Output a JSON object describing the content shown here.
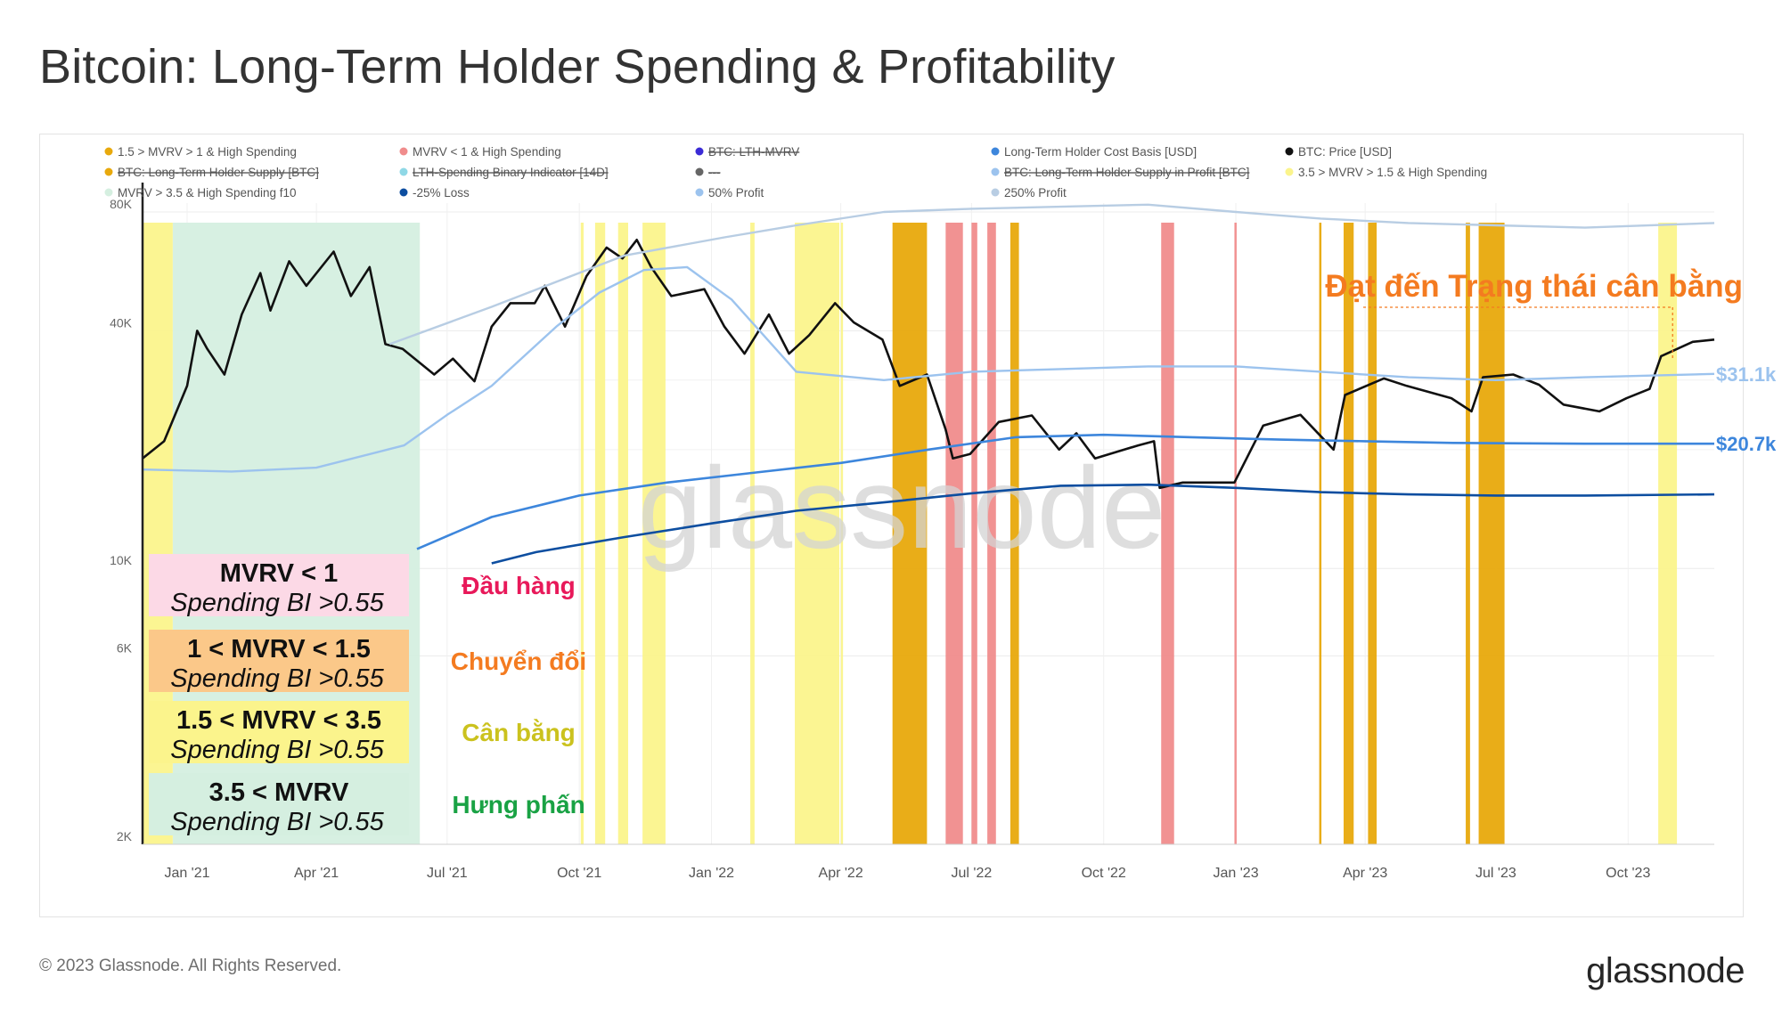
{
  "title": "Bitcoin: Long-Term Holder Spending & Profitability",
  "footer": {
    "copyright": "© 2023 Glassnode. All Rights Reserved.",
    "brand": "glassnode"
  },
  "watermark": "glassnode",
  "colors": {
    "price": "#111111",
    "cost_basis": "#3d86dc",
    "loss25": "#0d4ea0",
    "profit50": "#9cc3ee",
    "profit250": "#b8cde3",
    "balanced": "#fbf48c",
    "transition": "#e8a90c",
    "capitulation": "#f08c8c",
    "euphoria": "#d5efe0",
    "annotation": "#f47b20"
  },
  "legend": [
    {
      "label": "1.5 > MVRV > 1 & High Spending",
      "color": "#e8a90c",
      "struck": false
    },
    {
      "label": "MVRV < 1 & High Spending",
      "color": "#f08c8c",
      "struck": false
    },
    {
      "label": "BTC: LTH-MVRV",
      "color": "#3b2bd6",
      "struck": true
    },
    {
      "label": "Long-Term Holder Cost Basis [USD]",
      "color": "#3d86dc",
      "struck": false
    },
    {
      "label": "BTC: Price [USD]",
      "color": "#111111",
      "struck": false
    },
    {
      "label": "BTC: Long-Term Holder Supply [BTC]",
      "color": "#e8a90c",
      "struck": true
    },
    {
      "label": "LTH-Spending Binary Indicator [14D]",
      "color": "#8fd8e6",
      "struck": true
    },
    {
      "label": "---",
      "color": "#666666",
      "struck": true
    },
    {
      "label": "BTC: Long-Term Holder Supply in Profit [BTC]",
      "color": "#9cc3ee",
      "struck": true
    },
    {
      "label": "3.5 > MVRV > 1.5 & High Spending",
      "color": "#fbf48c",
      "struck": false
    },
    {
      "label": "MVRV > 3.5 & High Spending f10",
      "color": "#d5efe0",
      "struck": false
    },
    {
      "label": "-25% Loss",
      "color": "#0d4ea0",
      "struck": false
    },
    {
      "label": "50% Profit",
      "color": "#9cc3ee",
      "struck": false
    },
    {
      "label": "250% Profit",
      "color": "#b8cde3",
      "struck": false
    }
  ],
  "overlay_boxes": [
    {
      "line1": "MVRV < 1",
      "line2": "Spending BI >0.55",
      "label": "Đầu hàng",
      "bg": "#fcd9e6",
      "label_color": "#e8195a"
    },
    {
      "line1": "1 < MVRV < 1.5",
      "line2": "Spending BI >0.55",
      "label": "Chuyển đổi",
      "bg": "#fbc889",
      "label_color": "#f47b20"
    },
    {
      "line1": "1.5 < MVRV < 3.5",
      "line2": "Spending BI >0.55",
      "label": "Cân bằng",
      "bg": "#fbf48c",
      "label_color": "#cbc21e"
    },
    {
      "line1": "3.5 < MVRV",
      "line2": "Spending BI >0.55",
      "label": "Hưng phấn",
      "bg": "#d5efe0",
      "label_color": "#19a244"
    }
  ],
  "annotation": {
    "text": "Đạt đến Trạng thái cân bằng",
    "date": "2023-11-01"
  },
  "right_labels": [
    {
      "text": "$31.1k",
      "value": 31100,
      "color": "#9cc3ee"
    },
    {
      "text": "$20.7k",
      "value": 20700,
      "color": "#3d86dc"
    }
  ],
  "chart_data": {
    "type": "line",
    "title": "Bitcoin: Long-Term Holder Spending & Profitability",
    "y_scale": "log",
    "ylim": [
      2000,
      80000
    ],
    "xlim": [
      "2020-12-01",
      "2023-11-30"
    ],
    "y_ticks": [
      {
        "v": 2000,
        "label": "2K"
      },
      {
        "v": 6000,
        "label": "6K"
      },
      {
        "v": 10000,
        "label": "10K"
      },
      {
        "v": 40000,
        "label": "40K"
      },
      {
        "v": 80000,
        "label": "80K"
      }
    ],
    "x_ticks": [
      {
        "date": "2021-01-01",
        "label": "Jan '21"
      },
      {
        "date": "2021-04-01",
        "label": "Apr '21"
      },
      {
        "date": "2021-07-01",
        "label": "Jul '21"
      },
      {
        "date": "2021-10-01",
        "label": "Oct '21"
      },
      {
        "date": "2022-01-01",
        "label": "Jan '22"
      },
      {
        "date": "2022-04-01",
        "label": "Apr '22"
      },
      {
        "date": "2022-07-01",
        "label": "Jul '22"
      },
      {
        "date": "2022-10-01",
        "label": "Oct '22"
      },
      {
        "date": "2023-01-01",
        "label": "Jan '23"
      },
      {
        "date": "2023-04-01",
        "label": "Apr '23"
      },
      {
        "date": "2023-07-01",
        "label": "Jul '23"
      },
      {
        "date": "2023-10-01",
        "label": "Oct '23"
      }
    ],
    "series": [
      {
        "name": "BTC: Price [USD]",
        "color": "#111111",
        "width": 2.6,
        "points": [
          [
            "2020-12-01",
            19000
          ],
          [
            "2020-12-16",
            21000
          ],
          [
            "2021-01-01",
            29000
          ],
          [
            "2021-01-08",
            40000
          ],
          [
            "2021-01-15",
            36000
          ],
          [
            "2021-01-27",
            31000
          ],
          [
            "2021-02-08",
            44000
          ],
          [
            "2021-02-21",
            56000
          ],
          [
            "2021-02-28",
            45000
          ],
          [
            "2021-03-13",
            60000
          ],
          [
            "2021-03-25",
            52000
          ],
          [
            "2021-04-13",
            63500
          ],
          [
            "2021-04-25",
            49000
          ],
          [
            "2021-05-08",
            58000
          ],
          [
            "2021-05-19",
            37000
          ],
          [
            "2021-05-31",
            36000
          ],
          [
            "2021-06-22",
            31000
          ],
          [
            "2021-07-05",
            34000
          ],
          [
            "2021-07-20",
            29800
          ],
          [
            "2021-08-01",
            41000
          ],
          [
            "2021-08-14",
            47000
          ],
          [
            "2021-08-31",
            47000
          ],
          [
            "2021-09-07",
            52000
          ],
          [
            "2021-09-21",
            41000
          ],
          [
            "2021-10-06",
            55000
          ],
          [
            "2021-10-20",
            65000
          ],
          [
            "2021-10-31",
            61000
          ],
          [
            "2021-11-10",
            68000
          ],
          [
            "2021-11-20",
            58000
          ],
          [
            "2021-12-04",
            49000
          ],
          [
            "2021-12-27",
            51000
          ],
          [
            "2022-01-10",
            41000
          ],
          [
            "2022-01-24",
            35000
          ],
          [
            "2022-02-10",
            44000
          ],
          [
            "2022-02-24",
            35000
          ],
          [
            "2022-03-10",
            39000
          ],
          [
            "2022-03-28",
            47000
          ],
          [
            "2022-04-10",
            42000
          ],
          [
            "2022-04-30",
            38000
          ],
          [
            "2022-05-12",
            29000
          ],
          [
            "2022-05-31",
            31000
          ],
          [
            "2022-06-13",
            22500
          ],
          [
            "2022-06-18",
            19000
          ],
          [
            "2022-06-30",
            19500
          ],
          [
            "2022-07-20",
            23500
          ],
          [
            "2022-08-12",
            24400
          ],
          [
            "2022-08-31",
            20000
          ],
          [
            "2022-09-12",
            22000
          ],
          [
            "2022-09-25",
            19000
          ],
          [
            "2022-10-25",
            20500
          ],
          [
            "2022-11-05",
            21000
          ],
          [
            "2022-11-09",
            16000
          ],
          [
            "2022-11-25",
            16500
          ],
          [
            "2022-12-31",
            16500
          ],
          [
            "2023-01-20",
            23000
          ],
          [
            "2023-02-15",
            24500
          ],
          [
            "2023-03-10",
            20000
          ],
          [
            "2023-03-18",
            27500
          ],
          [
            "2023-04-14",
            30300
          ],
          [
            "2023-04-30",
            29000
          ],
          [
            "2023-05-31",
            27000
          ],
          [
            "2023-06-14",
            25000
          ],
          [
            "2023-06-22",
            30500
          ],
          [
            "2023-07-13",
            31000
          ],
          [
            "2023-07-31",
            29200
          ],
          [
            "2023-08-17",
            26000
          ],
          [
            "2023-09-11",
            25000
          ],
          [
            "2023-09-30",
            27000
          ],
          [
            "2023-10-16",
            28500
          ],
          [
            "2023-10-24",
            34500
          ],
          [
            "2023-11-15",
            37500
          ],
          [
            "2023-11-30",
            38000
          ]
        ]
      },
      {
        "name": "250% Profit",
        "color": "#b8cde3",
        "width": 2.4,
        "points": [
          [
            "2021-05-22",
            37000
          ],
          [
            "2021-08-01",
            46000
          ],
          [
            "2021-11-01",
            62000
          ],
          [
            "2022-01-10",
            69000
          ],
          [
            "2022-03-01",
            74000
          ],
          [
            "2022-05-01",
            80000
          ],
          [
            "2022-07-01",
            81500
          ],
          [
            "2022-09-01",
            82500
          ],
          [
            "2022-11-01",
            83500
          ],
          [
            "2023-01-01",
            80000
          ],
          [
            "2023-03-01",
            77000
          ],
          [
            "2023-05-01",
            75000
          ],
          [
            "2023-07-01",
            74000
          ],
          [
            "2023-09-01",
            73000
          ],
          [
            "2023-11-30",
            75000
          ]
        ]
      },
      {
        "name": "50% Profit",
        "color": "#9cc3ee",
        "width": 2.4,
        "points": [
          [
            "2020-12-01",
            17800
          ],
          [
            "2021-02-01",
            17600
          ],
          [
            "2021-04-01",
            18000
          ],
          [
            "2021-06-01",
            20500
          ],
          [
            "2021-07-01",
            24500
          ],
          [
            "2021-08-01",
            29000
          ],
          [
            "2021-09-15",
            41000
          ],
          [
            "2021-10-15",
            50000
          ],
          [
            "2021-11-15",
            57000
          ],
          [
            "2021-12-15",
            58000
          ],
          [
            "2022-01-15",
            48000
          ],
          [
            "2022-03-01",
            31500
          ],
          [
            "2022-05-01",
            30000
          ],
          [
            "2022-07-01",
            31500
          ],
          [
            "2022-09-01",
            32000
          ],
          [
            "2022-11-01",
            32500
          ],
          [
            "2023-01-01",
            32500
          ],
          [
            "2023-03-01",
            31500
          ],
          [
            "2023-05-01",
            30500
          ],
          [
            "2023-07-01",
            30000
          ],
          [
            "2023-09-01",
            30500
          ],
          [
            "2023-11-30",
            31100
          ]
        ]
      },
      {
        "name": "Long-Term Holder Cost Basis [USD]",
        "color": "#3d86dc",
        "width": 2.6,
        "points": [
          [
            "2021-06-10",
            11200
          ],
          [
            "2021-08-01",
            13500
          ],
          [
            "2021-10-01",
            15300
          ],
          [
            "2021-12-01",
            16500
          ],
          [
            "2022-02-01",
            17500
          ],
          [
            "2022-04-01",
            18500
          ],
          [
            "2022-06-01",
            20000
          ],
          [
            "2022-08-01",
            21500
          ],
          [
            "2022-10-01",
            21800
          ],
          [
            "2022-12-01",
            21500
          ],
          [
            "2023-02-01",
            21200
          ],
          [
            "2023-04-01",
            21000
          ],
          [
            "2023-06-01",
            20800
          ],
          [
            "2023-09-01",
            20700
          ],
          [
            "2023-11-30",
            20700
          ]
        ]
      },
      {
        "name": "-25% Loss",
        "color": "#0d4ea0",
        "width": 2.6,
        "points": [
          [
            "2021-08-01",
            10300
          ],
          [
            "2021-09-01",
            11000
          ],
          [
            "2021-11-01",
            12000
          ],
          [
            "2022-01-01",
            13000
          ],
          [
            "2022-03-01",
            14000
          ],
          [
            "2022-05-01",
            14700
          ],
          [
            "2022-07-01",
            15500
          ],
          [
            "2022-09-01",
            16200
          ],
          [
            "2022-11-01",
            16300
          ],
          [
            "2023-01-01",
            16000
          ],
          [
            "2023-03-01",
            15600
          ],
          [
            "2023-05-01",
            15400
          ],
          [
            "2023-07-01",
            15300
          ],
          [
            "2023-09-01",
            15300
          ],
          [
            "2023-11-30",
            15400
          ]
        ]
      }
    ],
    "regions": [
      {
        "name": "MVRV > 3.5 & High Spending f10",
        "color": "#d5efe0",
        "ranges": [
          [
            "2020-12-22",
            "2021-06-12"
          ]
        ]
      },
      {
        "name": "3.5 > MVRV > 1.5 & High Spending",
        "color": "#fbf48c",
        "ranges": [
          [
            "2020-12-01",
            "2020-12-22"
          ],
          [
            "2021-10-02",
            "2021-10-04"
          ],
          [
            "2021-10-12",
            "2021-10-19"
          ],
          [
            "2021-10-28",
            "2021-11-04"
          ],
          [
            "2021-11-14",
            "2021-11-30"
          ],
          [
            "2022-01-28",
            "2022-01-31"
          ],
          [
            "2022-02-28",
            "2022-03-31"
          ],
          [
            "2022-04-01",
            "2022-04-02"
          ],
          [
            "2023-10-22",
            "2023-11-04"
          ]
        ]
      },
      {
        "name": "1.5 > MVRV > 1 & High Spending",
        "color": "#e8a90c",
        "ranges": [
          [
            "2022-05-07",
            "2022-05-31"
          ],
          [
            "2022-07-28",
            "2022-08-03"
          ],
          [
            "2023-02-28",
            "2023-03-01"
          ],
          [
            "2023-03-17",
            "2023-03-24"
          ],
          [
            "2023-04-03",
            "2023-04-09"
          ],
          [
            "2023-06-10",
            "2023-06-13"
          ],
          [
            "2023-06-19",
            "2023-07-07"
          ]
        ]
      },
      {
        "name": "MVRV < 1 & High Spending",
        "color": "#f08c8c",
        "ranges": [
          [
            "2022-06-13",
            "2022-06-25"
          ],
          [
            "2022-07-01",
            "2022-07-05"
          ],
          [
            "2022-07-12",
            "2022-07-18"
          ],
          [
            "2022-11-10",
            "2022-11-19"
          ],
          [
            "2022-12-31",
            "2023-01-01"
          ]
        ]
      }
    ]
  }
}
